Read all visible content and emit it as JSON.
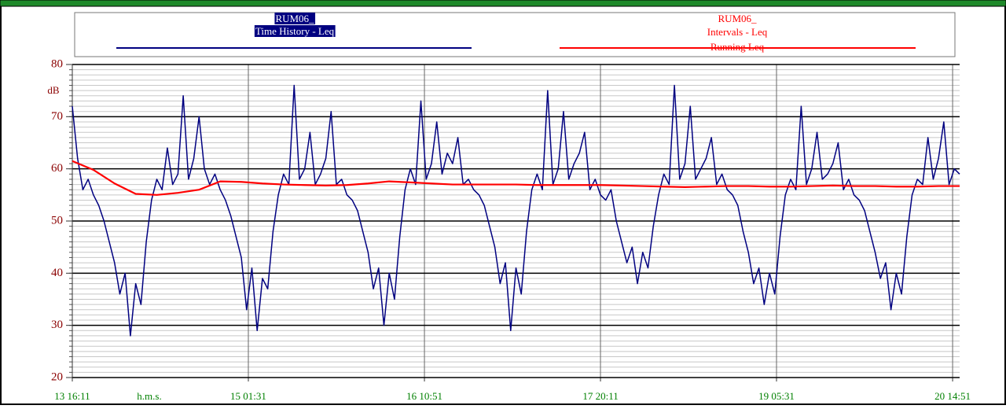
{
  "chart_data": {
    "type": "line",
    "y_label": "dB",
    "x_label": "h.m.s.",
    "xlim": [
      0,
      168
    ],
    "xticks": [
      {
        "value": 0,
        "label": "13 16:11"
      },
      {
        "value": 33.33,
        "label": "15 01:31"
      },
      {
        "value": 66.67,
        "label": "16 10:51"
      },
      {
        "value": 100,
        "label": "17 20:11"
      },
      {
        "value": 133.33,
        "label": "19 05:31"
      },
      {
        "value": 166.67,
        "label": "20 14:51"
      }
    ],
    "ylim": [
      20,
      80
    ],
    "yticks": [
      20,
      30,
      40,
      50,
      60,
      70,
      80
    ],
    "minor_grid": 1,
    "grid": true,
    "series": [
      {
        "name": "Time History - Leq",
        "source": "RUM06_",
        "color": "#000080",
        "x": [
          0,
          1,
          2,
          3,
          4,
          5,
          6,
          7,
          8,
          9,
          10,
          11,
          12,
          13,
          14,
          15,
          16,
          17,
          18,
          19,
          20,
          21,
          22,
          23,
          24,
          25,
          26,
          27,
          28,
          29,
          30,
          31,
          32,
          33,
          34,
          35,
          36,
          37,
          38,
          39,
          40,
          41,
          42,
          43,
          44,
          45,
          46,
          47,
          48,
          49,
          50,
          51,
          52,
          53,
          54,
          55,
          56,
          57,
          58,
          59,
          60,
          61,
          62,
          63,
          64,
          65,
          66,
          67,
          68,
          69,
          70,
          71,
          72,
          73,
          74,
          75,
          76,
          77,
          78,
          79,
          80,
          81,
          82,
          83,
          84,
          85,
          86,
          87,
          88,
          89,
          90,
          91,
          92,
          93,
          94,
          95,
          96,
          97,
          98,
          99,
          100,
          101,
          102,
          103,
          104,
          105,
          106,
          107,
          108,
          109,
          110,
          111,
          112,
          113,
          114,
          115,
          116,
          117,
          118,
          119,
          120,
          121,
          122,
          123,
          124,
          125,
          126,
          127,
          128,
          129,
          130,
          131,
          132,
          133,
          134,
          135,
          136,
          137,
          138,
          139,
          140,
          141,
          142,
          143,
          144,
          145,
          146,
          147,
          148,
          149,
          150,
          151,
          152,
          153,
          154,
          155,
          156,
          157,
          158,
          159,
          160,
          161,
          162,
          163,
          164,
          165,
          166,
          167,
          168
        ],
        "values": [
          72,
          62,
          56,
          58,
          55,
          53,
          50,
          46,
          42,
          36,
          40,
          28,
          38,
          34,
          46,
          54,
          58,
          56,
          64,
          57,
          59,
          74,
          58,
          62,
          70,
          60,
          57,
          59,
          56,
          54,
          51,
          47,
          43,
          33,
          41,
          29,
          39,
          37,
          48,
          55,
          59,
          57,
          76,
          58,
          60,
          67,
          57,
          59,
          62,
          71,
          57,
          58,
          55,
          54,
          52,
          48,
          44,
          37,
          41,
          30,
          40,
          35,
          47,
          56,
          60,
          57,
          73,
          58,
          61,
          69,
          59,
          63,
          61,
          66,
          57,
          58,
          56,
          55,
          53,
          49,
          45,
          38,
          42,
          29,
          41,
          36,
          48,
          56,
          59,
          56,
          75,
          57,
          60,
          71,
          58,
          61,
          63,
          67,
          56,
          58,
          55,
          54,
          56,
          50,
          46,
          42,
          45,
          38,
          44,
          41,
          49,
          55,
          59,
          57,
          76,
          58,
          61,
          72,
          58,
          60,
          62,
          66,
          57,
          59,
          56,
          55,
          53,
          48,
          44,
          38,
          41,
          34,
          40,
          36,
          47,
          55,
          58,
          56,
          72,
          57,
          60,
          67,
          58,
          59,
          61,
          65,
          56,
          58,
          55,
          54,
          52,
          48,
          44,
          39,
          42,
          33,
          40,
          36,
          47,
          55,
          58,
          57,
          66,
          58,
          62,
          69,
          57,
          60,
          59
        ]
      },
      {
        "name": "Running Leq",
        "source": "RUM06_",
        "group": "Intervals - Leq",
        "color": "#ff0000",
        "x": [
          0,
          4,
          8,
          12,
          16,
          20,
          24,
          28,
          32,
          36,
          40,
          44,
          48,
          52,
          56,
          60,
          64,
          68,
          72,
          76,
          80,
          84,
          88,
          92,
          96,
          100,
          104,
          108,
          112,
          116,
          120,
          124,
          128,
          132,
          136,
          140,
          144,
          148,
          152,
          156,
          160,
          164,
          168
        ],
        "values": [
          61.5,
          59.8,
          57.2,
          55.2,
          55,
          55.4,
          56,
          57.6,
          57.5,
          57.2,
          57,
          56.9,
          56.8,
          56.9,
          57.2,
          57.6,
          57.4,
          57.2,
          57,
          57,
          57,
          57,
          56.9,
          56.9,
          56.9,
          56.9,
          56.8,
          56.7,
          56.6,
          56.5,
          56.6,
          56.7,
          56.7,
          56.6,
          56.6,
          56.7,
          56.8,
          56.7,
          56.7,
          56.6,
          56.6,
          56.7,
          56.7
        ]
      }
    ]
  }
}
